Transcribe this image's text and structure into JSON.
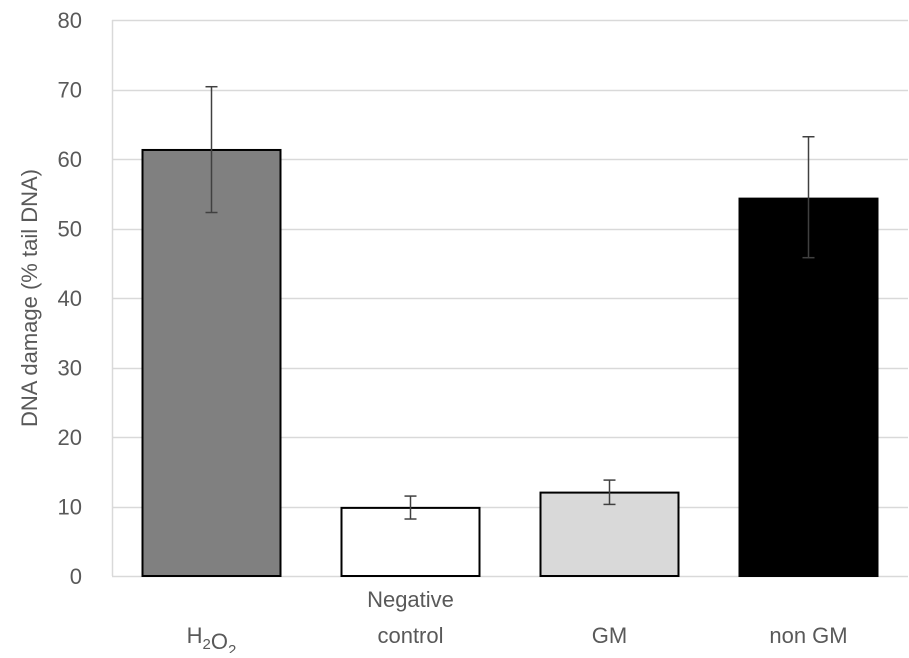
{
  "chart_data": {
    "type": "bar",
    "title": "",
    "xlabel": "",
    "ylabel": "DNA damage (% tail DNA)",
    "ylim": [
      0,
      80
    ],
    "yticks": [
      0,
      10,
      20,
      30,
      40,
      50,
      60,
      70,
      80
    ],
    "grid": true,
    "legend": "none",
    "categories": [
      {
        "label_lines": [
          {
            "base": "H",
            "sub": "2"
          },
          {
            "base": "O",
            "sub": "2"
          }
        ],
        "text": "H2O2"
      },
      {
        "label_lines": [
          "Negative",
          "control"
        ],
        "text": "Negative control"
      },
      {
        "label_lines": [
          "GM"
        ],
        "text": "GM"
      },
      {
        "label_lines": [
          "non GM"
        ],
        "text": "non GM"
      }
    ],
    "values": [
      61.3,
      9.8,
      12.0,
      54.3
    ],
    "error_low": [
      52.3,
      8.2,
      10.3,
      45.8
    ],
    "error_high": [
      70.4,
      11.5,
      13.8,
      63.2
    ],
    "bar_colors": [
      "#808080",
      "#ffffff",
      "#d9d9d9",
      "#000000"
    ],
    "colors": {
      "grid": "#d9d9d9",
      "text": "#595959",
      "bar_edge": "#000000",
      "error_bar": "#404040"
    }
  }
}
